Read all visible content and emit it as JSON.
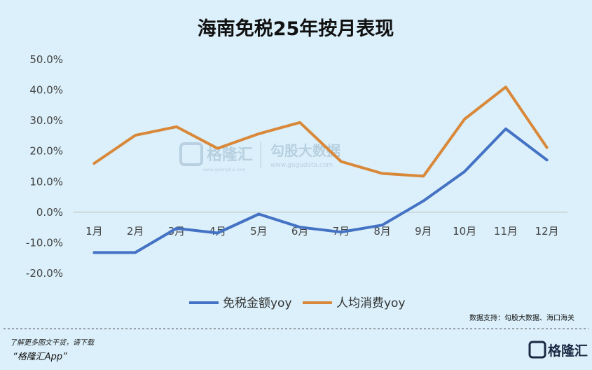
{
  "chart_data": {
    "type": "line",
    "title": "海南免税25年按月表现",
    "categories": [
      "1月",
      "2月",
      "3月",
      "4月",
      "5月",
      "6月",
      "7月",
      "8月",
      "9月",
      "10月",
      "11月",
      "12月"
    ],
    "ylim": [
      -20,
      50
    ],
    "yticks": [
      50,
      40,
      30,
      20,
      10,
      0,
      -10,
      -20
    ],
    "ytick_labels": [
      "50.0%",
      "40.0%",
      "30.0%",
      "20.0%",
      "10.0%",
      "0.0%",
      "-10.0%",
      "-20.0%"
    ],
    "grid": false,
    "legend_position": "bottom",
    "series": [
      {
        "name": "免税金额yoy",
        "color": "#4472c4",
        "values": [
          -13.2,
          -13.2,
          -5.3,
          -6.8,
          -0.6,
          -4.9,
          -6.5,
          -4.2,
          3.7,
          13.3,
          27.3,
          17.1
        ]
      },
      {
        "name": "人均消费yoy",
        "color": "#d9883a",
        "values": [
          16.0,
          25.2,
          28.0,
          20.9,
          25.7,
          29.4,
          16.6,
          12.7,
          11.8,
          30.5,
          41.0,
          21.2
        ]
      }
    ]
  },
  "source_note": "数据支持：勾股大数据、海口海关",
  "footer": {
    "line1": "了解更多图文干货，请下载",
    "line2": "“格隆汇App”",
    "logo_text": "格隆汇"
  },
  "watermark": {
    "brand": "格隆汇",
    "brand_url": "www.gelonghui.com",
    "partner": "勾股大数据",
    "partner_url": "www.gogudata.com"
  }
}
